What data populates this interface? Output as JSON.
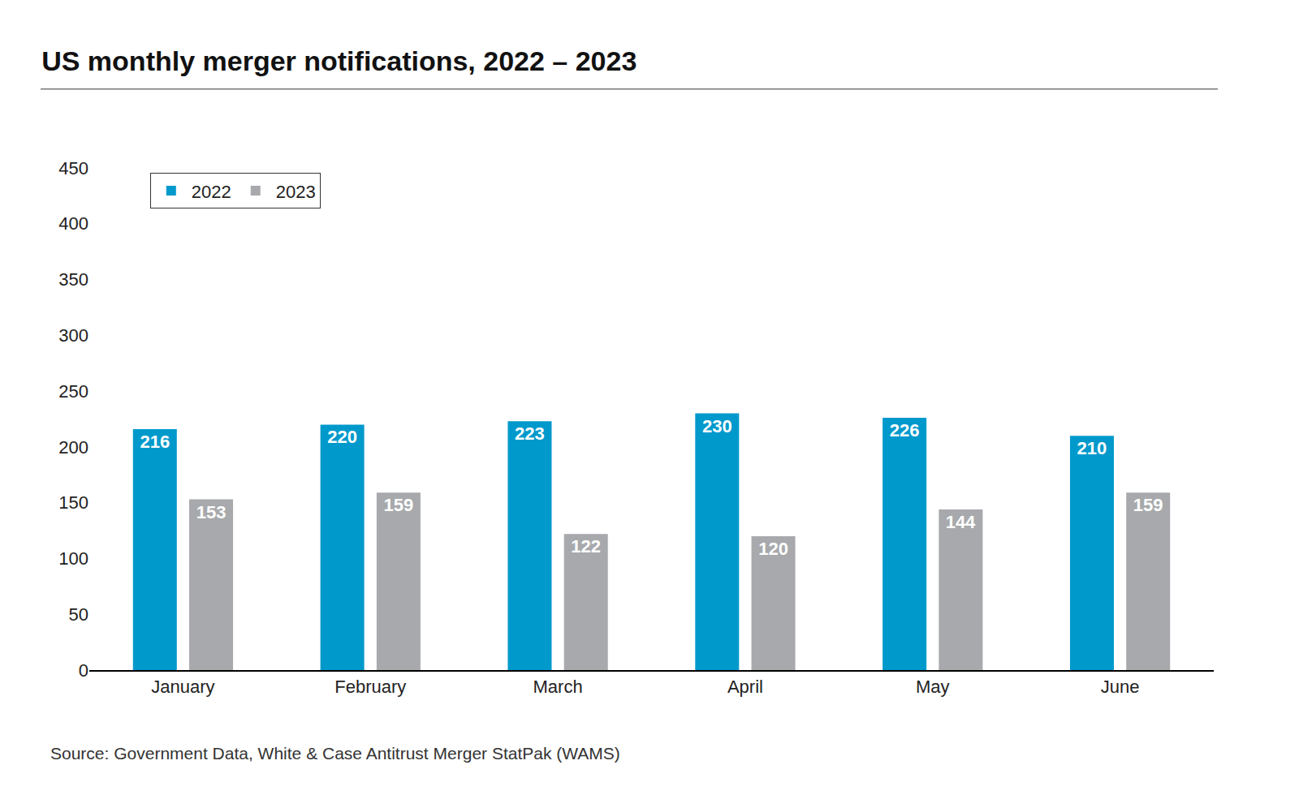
{
  "chart_data": {
    "type": "bar",
    "title": "US monthly merger notifications, 2022 – 2023",
    "categories": [
      "January",
      "February",
      "March",
      "April",
      "May",
      "June"
    ],
    "series": [
      {
        "name": "2022",
        "color": "#0099cc",
        "values": [
          216,
          220,
          223,
          230,
          226,
          210
        ]
      },
      {
        "name": "2023",
        "color": "#a7a9ac",
        "values": [
          153,
          159,
          122,
          120,
          144,
          159
        ]
      }
    ],
    "ylim": [
      0,
      450
    ],
    "yticks": [
      0,
      50,
      100,
      150,
      200,
      250,
      300,
      350,
      400,
      450
    ],
    "grid": false,
    "legend": "top-left",
    "data_labels": true,
    "source": "Source: Government Data, White & Case Antitrust Merger StatPak (WAMS)"
  }
}
